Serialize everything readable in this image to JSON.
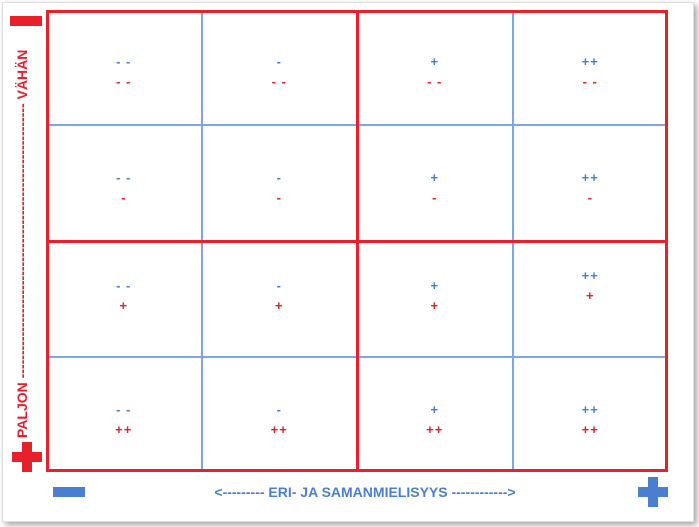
{
  "labels": {
    "y_top": "VÄHÄN",
    "y_bottom": "PALJON",
    "x_axis": "<--------- ERI- JA SAMANMIELISYYS ------------>"
  },
  "colors": {
    "red": "#e8202a",
    "blue": "#4a7fd0",
    "grid_blue": "#7fa6e0"
  },
  "icons": {
    "y_top": "minus-icon",
    "y_bottom": "plus-icon",
    "x_left": "minus-icon",
    "x_right": "plus-icon"
  },
  "cells": [
    [
      {
        "top": "- -",
        "bot": "- -"
      },
      {
        "top": "-",
        "bot": "- -"
      },
      {
        "top": "+",
        "bot": "- -"
      },
      {
        "top": "++",
        "bot": "- -"
      }
    ],
    [
      {
        "top": "- -",
        "bot": "-"
      },
      {
        "top": "-",
        "bot": "-"
      },
      {
        "top": "+",
        "bot": "-"
      },
      {
        "top": "++",
        "bot": "-"
      }
    ],
    [
      {
        "top": "- -",
        "bot": "+"
      },
      {
        "top": "-",
        "bot": "+"
      },
      {
        "top": "+",
        "bot": "+"
      },
      {
        "top": "++",
        "bot": "+"
      }
    ],
    [
      {
        "top": "- -",
        "bot": "++"
      },
      {
        "top": "-",
        "bot": "++"
      },
      {
        "top": "+",
        "bot": "++"
      },
      {
        "top": "++",
        "bot": "++"
      }
    ]
  ]
}
